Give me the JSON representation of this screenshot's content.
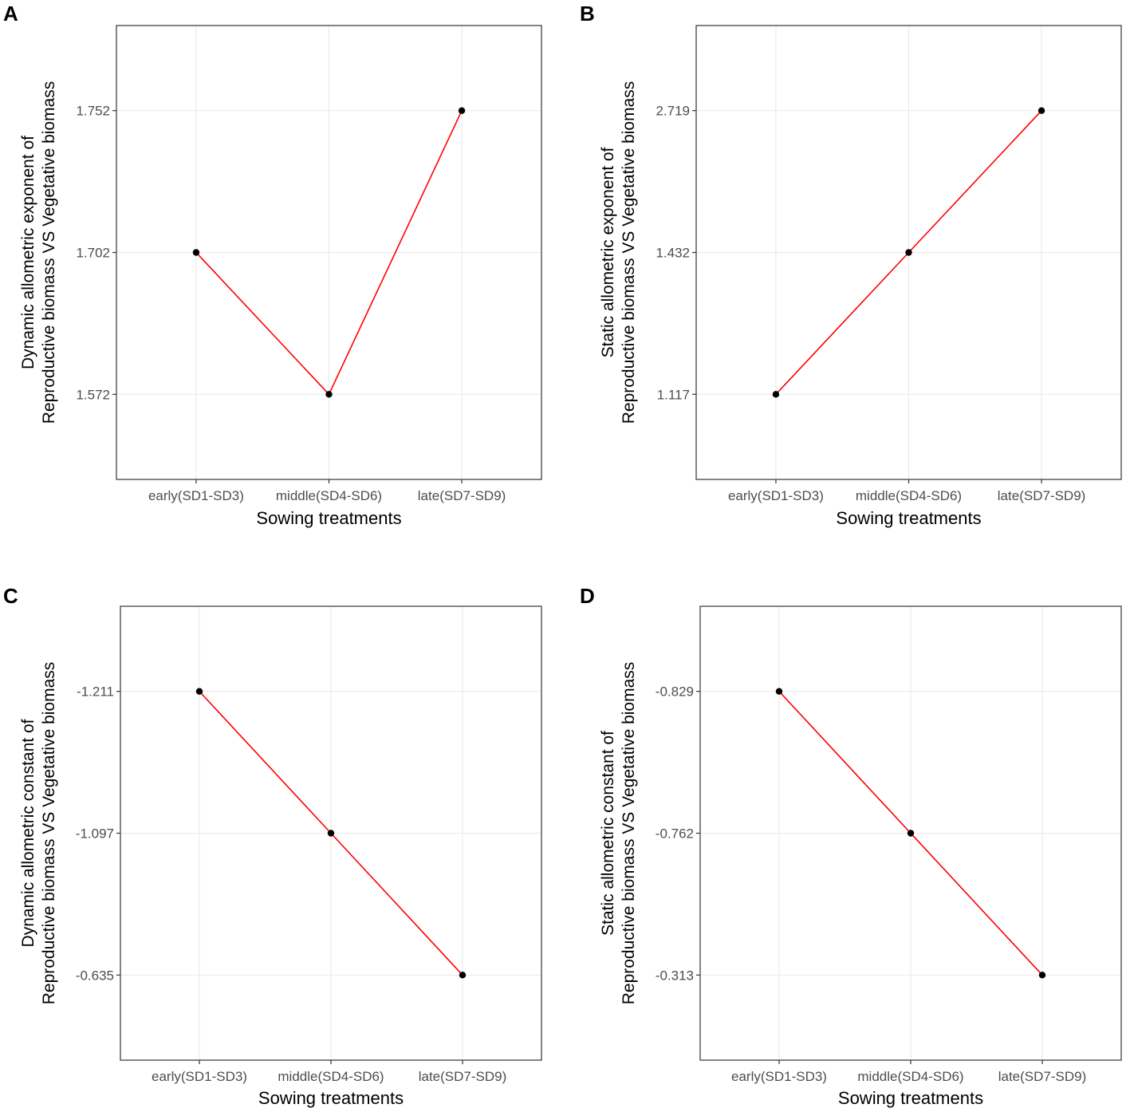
{
  "line_color": "#ff0000",
  "point_color": "#000000",
  "chart_data": [
    {
      "panel": "A",
      "type": "line",
      "categories": [
        "early(SD1-SD3)",
        "middle(SD4-SD6)",
        "late(SD7-SD9)"
      ],
      "values": [
        1.702,
        1.572,
        1.752
      ],
      "yticks": [
        1.752,
        1.702,
        1.572
      ],
      "ytick_labels": [
        "1.752",
        "1.702",
        "1.572"
      ],
      "xlabel": "Sowing treatments",
      "ylabel_lines": [
        "Dynamic allometric exponent of",
        "Reproductive biomass VS Vegetative biomass"
      ],
      "scale": "ordinal-ticks",
      "grid": true
    },
    {
      "panel": "B",
      "type": "line",
      "categories": [
        "early(SD1-SD3)",
        "middle(SD4-SD6)",
        "late(SD7-SD9)"
      ],
      "values": [
        1.117,
        1.432,
        2.719
      ],
      "yticks": [
        2.719,
        1.432,
        1.117
      ],
      "ytick_labels": [
        "2.719",
        "1.432",
        "1.117"
      ],
      "xlabel": "Sowing treatments",
      "ylabel_lines": [
        "Static allometric exponent of",
        "Reproductive biomass VS Vegetative biomass"
      ],
      "scale": "ordinal-ticks",
      "grid": true
    },
    {
      "panel": "C",
      "type": "line",
      "categories": [
        "early(SD1-SD3)",
        "middle(SD4-SD6)",
        "late(SD7-SD9)"
      ],
      "values": [
        -1.211,
        -1.097,
        -0.635
      ],
      "yticks": [
        -1.211,
        -1.097,
        -0.635
      ],
      "ytick_labels": [
        "-1.211",
        "-1.097",
        "-0.635"
      ],
      "xlabel": "Sowing treatments",
      "ylabel_lines": [
        "Dynamic allometric constant of",
        "Reproductive biomass VS Vegetative biomass"
      ],
      "scale": "ordinal-ticks",
      "grid": true
    },
    {
      "panel": "D",
      "type": "line",
      "categories": [
        "early(SD1-SD3)",
        "middle(SD4-SD6)",
        "late(SD7-SD9)"
      ],
      "values": [
        -0.829,
        -0.762,
        -0.313
      ],
      "yticks": [
        -0.829,
        -0.762,
        -0.313
      ],
      "ytick_labels": [
        "-0.829",
        "-0.762",
        "-0.313"
      ],
      "xlabel": "Sowing treatments",
      "ylabel_lines": [
        "Static allometric constant of",
        "Reproductive biomass VS Vegetative biomass"
      ],
      "scale": "ordinal-ticks",
      "grid": true
    }
  ]
}
